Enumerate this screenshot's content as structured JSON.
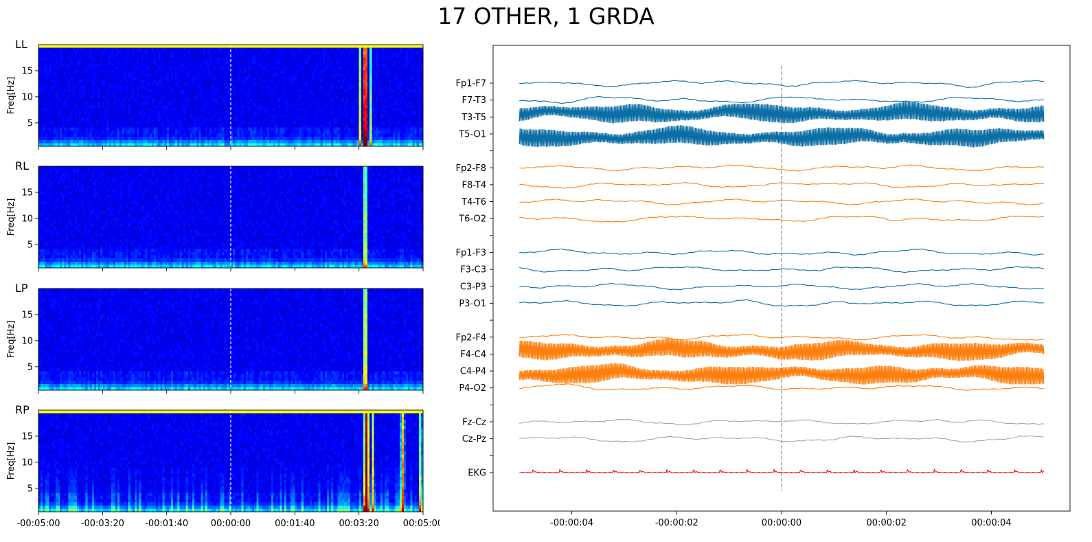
{
  "title": "17 OTHER, 1 GRDA",
  "chart_data": [
    {
      "type": "heatmap",
      "panels": [
        {
          "label": "LL",
          "top_band": true,
          "events": [
            {
              "t": 210,
              "w": 5,
              "i": 1.0
            },
            {
              "t": 202,
              "w": 3,
              "i": 0.45
            },
            {
              "t": 218,
              "w": 3,
              "i": 0.35
            }
          ]
        },
        {
          "label": "RL",
          "top_band": false,
          "events": [
            {
              "t": 210,
              "w": 4,
              "i": 0.55
            }
          ]
        },
        {
          "label": "LP",
          "top_band": false,
          "events": [
            {
              "t": 210,
              "w": 4,
              "i": 0.65
            }
          ]
        },
        {
          "label": "RP",
          "top_band": true,
          "events": [
            {
              "t": 212,
              "w": 6,
              "i": 0.9
            },
            {
              "t": 222,
              "w": 3,
              "i": 0.5
            },
            {
              "t": 268,
              "w": 4,
              "i": 0.6
            },
            {
              "t": 296,
              "w": 3,
              "i": 0.5
            }
          ]
        }
      ],
      "ylabel": "Freq[Hz]",
      "yticks": [
        5,
        10,
        15
      ],
      "ylim": [
        0.5,
        20
      ],
      "xlim": [
        -300,
        300
      ],
      "xtick_values": [
        -300,
        -200,
        -100,
        0,
        100,
        200,
        300
      ],
      "xtick_labels": [
        "-00:05:00",
        "-00:03:20",
        "-00:01:40",
        "00:00:00",
        "00:01:40",
        "00:03:20",
        "00:05:00"
      ],
      "center_marker": 0,
      "colormap": "jet"
    },
    {
      "type": "line",
      "channels": [
        {
          "name": "Fp1-F7",
          "group": "LL",
          "color": "#0b6ea5"
        },
        {
          "name": "F7-T3",
          "group": "LL",
          "color": "#0b6ea5"
        },
        {
          "name": "T3-T5",
          "group": "LL",
          "color": "#0b6ea5",
          "artifact": true
        },
        {
          "name": "T5-O1",
          "group": "LL",
          "color": "#0b6ea5",
          "artifact": true
        },
        {
          "name": "",
          "group": "gap"
        },
        {
          "name": "Fp2-F8",
          "group": "RL",
          "color": "#ff7f0e"
        },
        {
          "name": "F8-T4",
          "group": "RL",
          "color": "#ff7f0e"
        },
        {
          "name": "T4-T6",
          "group": "RL",
          "color": "#ff7f0e"
        },
        {
          "name": "T6-O2",
          "group": "RL",
          "color": "#ff7f0e"
        },
        {
          "name": "",
          "group": "gap"
        },
        {
          "name": "Fp1-F3",
          "group": "LP",
          "color": "#0b6ea5"
        },
        {
          "name": "F3-C3",
          "group": "LP",
          "color": "#0b6ea5"
        },
        {
          "name": "C3-P3",
          "group": "LP",
          "color": "#0b6ea5"
        },
        {
          "name": "P3-O1",
          "group": "LP",
          "color": "#0b6ea5"
        },
        {
          "name": "",
          "group": "gap"
        },
        {
          "name": "Fp2-F4",
          "group": "RP",
          "color": "#ff7f0e"
        },
        {
          "name": "F4-C4",
          "group": "RP",
          "color": "#ff7f0e",
          "artifact": true
        },
        {
          "name": "C4-P4",
          "group": "RP",
          "color": "#ff7f0e",
          "artifact": true
        },
        {
          "name": "P4-O2",
          "group": "RP",
          "color": "#ff7f0e"
        },
        {
          "name": "",
          "group": "gap"
        },
        {
          "name": "Fz-Cz",
          "group": "C",
          "color": "#a6a6a6"
        },
        {
          "name": "Cz-Pz",
          "group": "C",
          "color": "#a6a6a6"
        },
        {
          "name": "",
          "group": "gap"
        },
        {
          "name": "EKG",
          "group": "EKG",
          "color": "#ff0000",
          "ekg": true
        }
      ],
      "xlim": [
        -5.5,
        5.5
      ],
      "trace_range": [
        -5,
        5
      ],
      "xtick_values": [
        -4,
        -2,
        0,
        2,
        4
      ],
      "xtick_labels": [
        "-00:00:04",
        "-00:00:02",
        "00:00:00",
        "00:00:02",
        "00:00:04"
      ],
      "center_marker": 0,
      "grid": false
    }
  ]
}
